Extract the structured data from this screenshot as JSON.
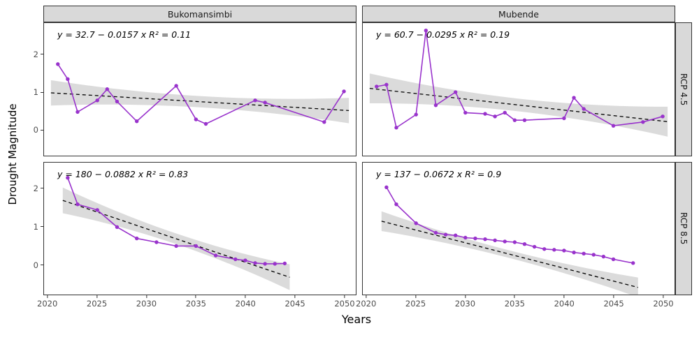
{
  "figure": {
    "y_label": "Drought Magnitude",
    "x_label": "Years"
  },
  "chart_data": {
    "type": "line",
    "title": "",
    "xlabel": "Years",
    "ylabel": "Drought Magnitude",
    "facets": {
      "columns": [
        "Bukomansimbi",
        "Mubende"
      ],
      "rows": [
        "RCP 4.5",
        "RCP 8.5"
      ]
    },
    "x_ticks": [
      2020,
      2025,
      2030,
      2035,
      2040,
      2045,
      2050
    ],
    "y_ticks": [
      0,
      1,
      2
    ],
    "x_domain": [
      2019.6,
      2051.2
    ],
    "row_y_domains": [
      [
        -0.7,
        2.85
      ],
      [
        -0.8,
        2.7
      ]
    ],
    "colors": {
      "series": "#9933CC",
      "trend": "#000000",
      "ribbon": "#bdbdbd",
      "strip_bg": "#d9d9d9"
    },
    "panels": [
      {
        "facet_col": "Bukomansimbi",
        "facet_row": "RCP 4.5",
        "equation": "y = 32.7 − 0.0157 x    R² = 0.11",
        "trend": {
          "intercept": 32.7,
          "slope": -0.0157,
          "r2": 0.11,
          "x_range": [
            2020.3,
            2050.5
          ],
          "band_half_mid": 0.15,
          "band_half_end": 0.34
        },
        "points": {
          "x": [
            2021,
            2022,
            2023,
            2025,
            2026,
            2027,
            2029,
            2033,
            2035,
            2036,
            2041,
            2042,
            2048,
            2050
          ],
          "y": [
            1.75,
            1.35,
            0.47,
            0.78,
            1.08,
            0.75,
            0.22,
            1.17,
            0.27,
            0.15,
            0.78,
            0.72,
            0.2,
            1.02
          ]
        }
      },
      {
        "facet_col": "Mubende",
        "facet_row": "RCP 4.5",
        "equation": "y = 60.7 − 0.0295 x    R² = 0.19",
        "trend": {
          "intercept": 60.7,
          "slope": -0.0295,
          "r2": 0.19,
          "x_range": [
            2020.3,
            2050.5
          ],
          "band_half_mid": 0.17,
          "band_half_end": 0.4
        },
        "points": {
          "x": [
            2021,
            2022,
            2023,
            2025,
            2026,
            2027,
            2029,
            2030,
            2032,
            2033,
            2034,
            2035,
            2036,
            2040,
            2041,
            2042,
            2045,
            2048,
            2050
          ],
          "y": [
            1.15,
            1.2,
            0.05,
            0.4,
            2.65,
            0.65,
            1.0,
            0.45,
            0.42,
            0.35,
            0.45,
            0.25,
            0.25,
            0.3,
            0.85,
            0.55,
            0.1,
            0.2,
            0.35
          ]
        }
      },
      {
        "facet_col": "Bukomansimbi",
        "facet_row": "RCP 8.5",
        "equation": "y = 180 − 0.0882 x    R² = 0.83",
        "trend": {
          "intercept": 180,
          "slope": -0.0882,
          "r2": 0.83,
          "x_range": [
            2021.5,
            2044.5
          ],
          "band_half_mid": 0.14,
          "band_half_end": 0.34
        },
        "points": {
          "x": [
            2022,
            2023,
            2025,
            2027,
            2029,
            2031,
            2033,
            2035,
            2037,
            2039,
            2040,
            2041,
            2042,
            2043,
            2044
          ],
          "y": [
            2.3,
            1.6,
            1.45,
            1.0,
            0.7,
            0.6,
            0.5,
            0.5,
            0.25,
            0.15,
            0.12,
            0.05,
            0.03,
            0.03,
            0.04
          ]
        }
      },
      {
        "facet_col": "Mubende",
        "facet_row": "RCP 8.5",
        "equation": "y = 137 − 0.0672 x    R² = 0.9",
        "trend": {
          "intercept": 137,
          "slope": -0.0672,
          "r2": 0.9,
          "x_range": [
            2021.5,
            2047.5
          ],
          "band_half_mid": 0.1,
          "band_half_end": 0.26
        },
        "points": {
          "x": [
            2022,
            2023,
            2025,
            2027,
            2028,
            2029,
            2030,
            2031,
            2032,
            2033,
            2034,
            2035,
            2036,
            2037,
            2038,
            2039,
            2040,
            2041,
            2042,
            2043,
            2044,
            2045,
            2047
          ],
          "y": [
            2.05,
            1.6,
            1.1,
            0.85,
            0.8,
            0.78,
            0.72,
            0.7,
            0.68,
            0.65,
            0.62,
            0.6,
            0.55,
            0.48,
            0.42,
            0.4,
            0.38,
            0.33,
            0.3,
            0.27,
            0.22,
            0.15,
            0.05
          ]
        }
      }
    ]
  }
}
